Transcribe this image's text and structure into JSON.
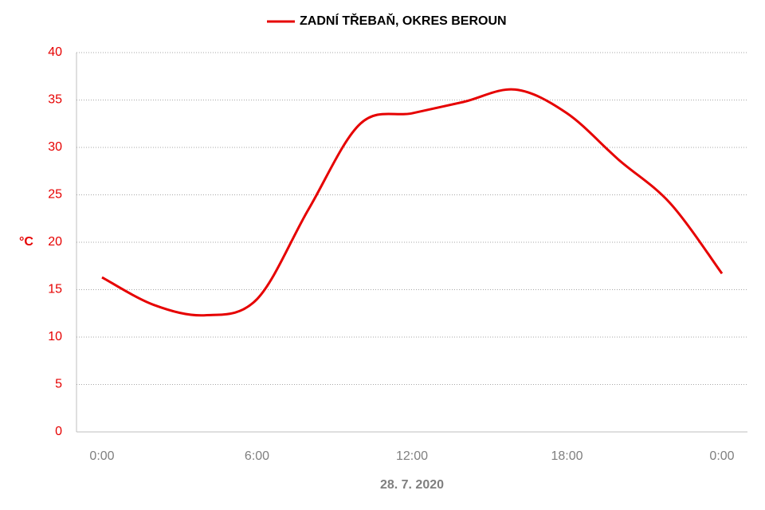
{
  "chart_data": {
    "type": "line",
    "x_label": "28. 7. 2020",
    "y_label": "°C",
    "categories": [
      "0:00",
      null,
      null,
      "6:00",
      null,
      null,
      "12:00",
      null,
      null,
      "18:00",
      null,
      null,
      "0:00"
    ],
    "series": [
      {
        "name": "ZADNÍ TŘEBAŇ, OKRES BEROUN",
        "color": "#e60000",
        "values": [
          16.3,
          13.4,
          12.3,
          14.0,
          23.5,
          32.5,
          33.6,
          34.8,
          36.1,
          33.6,
          28.7,
          24.1,
          16.7
        ]
      }
    ],
    "ylim": [
      0,
      40
    ],
    "yticks": [
      0,
      5,
      10,
      15,
      20,
      25,
      30,
      35,
      40
    ],
    "grid": true
  }
}
